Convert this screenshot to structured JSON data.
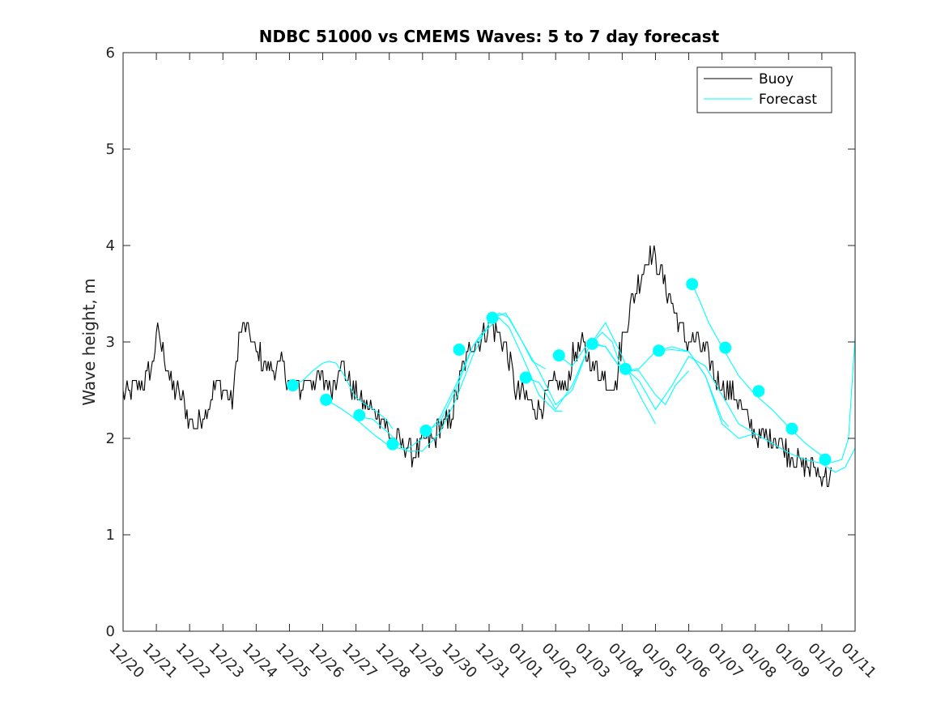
{
  "chart_data": {
    "type": "line",
    "title": "NDBC 51000 vs CMEMS Waves: 5 to 7 day forecast",
    "xlabel": "",
    "ylabel": "Wave height, m",
    "xlim": [
      0,
      22
    ],
    "ylim": [
      0,
      6
    ],
    "yticks": [
      0,
      1,
      2,
      3,
      4,
      5,
      6
    ],
    "ytick_labels": [
      "0",
      "1",
      "2",
      "3",
      "4",
      "5",
      "6"
    ],
    "xtick_labels": [
      "12/20",
      "12/21",
      "12/22",
      "12/23",
      "12/24",
      "12/25",
      "12/26",
      "12/27",
      "12/28",
      "12/29",
      "12/30",
      "12/31",
      "01/01",
      "01/02",
      "01/03",
      "01/04",
      "01/05",
      "01/06",
      "01/07",
      "01/08",
      "01/09",
      "01/10",
      "01/11"
    ],
    "legend": {
      "position": "top-right",
      "entries": [
        {
          "label": "Buoy",
          "color": "#000000"
        },
        {
          "label": "Forecast",
          "color": "#00FFFF"
        }
      ]
    },
    "series": [
      {
        "name": "Buoy",
        "color": "#000000",
        "noise": 0.13,
        "x": [
          0,
          0.3,
          0.6,
          0.9,
          1.0,
          1.2,
          1.5,
          1.8,
          2.0,
          2.2,
          2.5,
          2.8,
          3.0,
          3.3,
          3.5,
          3.7,
          4.0,
          4.3,
          4.5,
          4.8,
          5.0,
          5.3,
          5.5,
          5.8,
          6.0,
          6.3,
          6.5,
          6.8,
          7.0,
          7.3,
          7.5,
          7.8,
          8.0,
          8.3,
          8.5,
          8.8,
          9.0,
          9.3,
          9.5,
          9.8,
          10.0,
          10.2,
          10.5,
          10.8,
          11.0,
          11.3,
          11.5,
          11.8,
          12.0,
          12.3,
          12.5,
          12.8,
          13.0,
          13.3,
          13.5,
          13.8,
          14.0,
          14.3,
          14.5,
          14.8,
          15.0,
          15.3,
          15.5,
          15.8,
          16.0,
          16.2,
          16.5,
          16.8,
          17.0,
          17.3,
          17.5,
          17.8,
          18.0,
          18.3,
          18.5,
          18.8,
          19.0,
          19.3,
          19.5,
          19.8,
          20.0,
          20.3,
          20.5,
          20.8,
          21.0,
          21.2,
          21.3
        ],
        "y": [
          2.5,
          2.5,
          2.55,
          2.8,
          3.1,
          2.9,
          2.5,
          2.4,
          2.2,
          2.15,
          2.3,
          2.55,
          2.5,
          2.4,
          3.1,
          3.15,
          2.9,
          2.75,
          2.7,
          2.75,
          2.6,
          2.5,
          2.6,
          2.6,
          2.6,
          2.5,
          2.8,
          2.6,
          2.45,
          2.35,
          2.3,
          2.25,
          2.0,
          1.95,
          1.9,
          1.85,
          1.95,
          2.0,
          2.1,
          2.15,
          2.4,
          2.7,
          3.0,
          3.05,
          3.2,
          3.1,
          2.95,
          2.5,
          2.45,
          2.35,
          2.3,
          2.5,
          2.6,
          2.5,
          2.85,
          2.95,
          2.8,
          2.7,
          2.6,
          2.55,
          3.05,
          3.4,
          3.6,
          3.9,
          3.85,
          3.7,
          3.4,
          3.1,
          3.0,
          3.0,
          2.9,
          2.65,
          2.55,
          2.45,
          2.4,
          2.15,
          2.05,
          2.0,
          2.0,
          1.95,
          1.85,
          1.75,
          1.7,
          1.7,
          1.6,
          1.6,
          1.6
        ]
      },
      {
        "name": "Forecast segment 1",
        "color": "#00FFFF",
        "x": [
          5.1,
          5.4,
          5.7,
          6.0,
          6.2,
          6.4,
          6.6,
          6.8,
          7.0,
          7.3,
          7.6,
          7.9,
          8.1
        ],
        "y": [
          2.55,
          2.6,
          2.7,
          2.78,
          2.8,
          2.78,
          2.68,
          2.55,
          2.42,
          2.35,
          2.28,
          2.2,
          2.1
        ]
      },
      {
        "name": "Forecast segment 2",
        "color": "#00FFFF",
        "x": [
          6.1,
          6.5,
          7.0,
          7.5,
          8.0,
          8.5,
          9.0,
          9.5,
          10.0,
          10.5,
          10.8
        ],
        "y": [
          2.4,
          2.32,
          2.2,
          2.05,
          1.92,
          1.88,
          2.0,
          2.2,
          2.55,
          2.95,
          3.1
        ]
      },
      {
        "name": "Forecast segment 3",
        "color": "#00FFFF",
        "x": [
          7.1,
          7.5,
          8.0,
          8.5,
          9.0,
          9.5,
          10.0,
          10.5,
          11.0,
          11.3,
          11.6,
          12.0,
          12.3,
          12.7
        ],
        "y": [
          2.22,
          2.2,
          2.05,
          1.87,
          1.87,
          2.05,
          2.4,
          2.85,
          3.2,
          3.3,
          3.25,
          3.0,
          2.8,
          2.72
        ]
      },
      {
        "name": "Forecast segment 4",
        "color": "#00FFFF",
        "x": [
          9.1,
          9.5,
          10.0,
          10.5,
          11.0,
          11.3,
          11.6,
          12.0,
          12.5,
          13.0,
          13.2
        ],
        "y": [
          2.08,
          2.15,
          2.5,
          2.95,
          3.15,
          3.25,
          3.15,
          2.85,
          2.45,
          2.28,
          2.28
        ]
      },
      {
        "name": "Forecast segment 5",
        "color": "#00FFFF",
        "x": [
          11.1,
          11.5,
          12.0,
          12.5,
          13.0,
          13.5,
          14.0,
          14.4,
          14.7,
          15.0
        ],
        "y": [
          3.25,
          3.3,
          3.0,
          2.7,
          2.35,
          2.5,
          2.95,
          3.1,
          3.0,
          2.7
        ]
      },
      {
        "name": "Forecast segment 6",
        "color": "#00FFFF",
        "x": [
          12.1,
          12.5,
          13.0,
          13.5,
          14.0,
          14.5,
          15.0,
          15.3,
          15.6,
          16.0
        ],
        "y": [
          2.63,
          2.58,
          2.3,
          2.55,
          2.95,
          3.2,
          2.85,
          2.6,
          2.4,
          2.15
        ]
      },
      {
        "name": "Forecast segment 7",
        "color": "#00FFFF",
        "x": [
          13.1,
          13.5,
          14.0,
          14.5,
          15.0,
          15.5,
          16.0,
          16.3,
          16.6,
          17.0
        ],
        "y": [
          2.86,
          2.75,
          3.0,
          2.95,
          2.7,
          2.7,
          2.45,
          2.35,
          2.55,
          2.7
        ]
      },
      {
        "name": "Forecast segment 8",
        "color": "#00FFFF",
        "x": [
          14.1,
          14.5,
          15.0,
          15.5,
          16.0,
          16.5,
          17.0,
          17.5,
          18.0,
          18.2
        ],
        "y": [
          2.98,
          2.95,
          2.7,
          2.72,
          2.9,
          2.95,
          2.9,
          2.65,
          2.2,
          2.12
        ]
      },
      {
        "name": "Forecast segment 9",
        "color": "#00FFFF",
        "x": [
          15.1,
          15.5,
          16.0,
          16.5,
          17.0,
          17.5,
          18.0,
          18.5,
          19.0
        ],
        "y": [
          2.72,
          2.6,
          2.3,
          2.55,
          2.85,
          2.75,
          2.45,
          2.15,
          2.05
        ]
      },
      {
        "name": "Forecast segment 10",
        "color": "#00FFFF",
        "x": [
          16.1,
          16.5,
          17.0,
          17.5,
          18.0,
          18.5,
          19.0,
          19.5,
          20.0,
          20.5,
          21.0,
          21.4,
          21.7,
          22.0
        ],
        "y": [
          2.91,
          2.92,
          2.9,
          2.65,
          2.15,
          2.0,
          2.05,
          1.95,
          1.85,
          1.78,
          1.74,
          1.65,
          1.7,
          1.9
        ]
      },
      {
        "name": "Forecast segment 11",
        "color": "#00FFFF",
        "x": [
          17.1,
          17.3,
          17.6,
          18.0,
          18.5,
          19.0,
          19.5,
          20.0,
          20.5,
          21.0,
          21.3,
          21.6,
          21.8,
          22.0
        ],
        "y": [
          3.6,
          3.45,
          3.2,
          2.95,
          2.65,
          2.45,
          2.3,
          2.12,
          1.95,
          1.82,
          1.75,
          1.78,
          2.0,
          3.05
        ]
      }
    ],
    "markers": {
      "name": "Forecast start points",
      "color": "#00FFFF",
      "x": [
        5.1,
        6.1,
        7.1,
        8.1,
        9.1,
        10.1,
        11.1,
        12.1,
        13.1,
        14.1,
        15.1,
        16.1,
        17.1,
        18.1,
        19.1,
        20.1,
        21.1
      ],
      "y": [
        2.55,
        2.4,
        2.24,
        1.94,
        2.08,
        2.92,
        3.25,
        2.63,
        2.86,
        2.98,
        2.72,
        2.91,
        3.6,
        2.94,
        2.49,
        2.1,
        1.78
      ]
    }
  }
}
